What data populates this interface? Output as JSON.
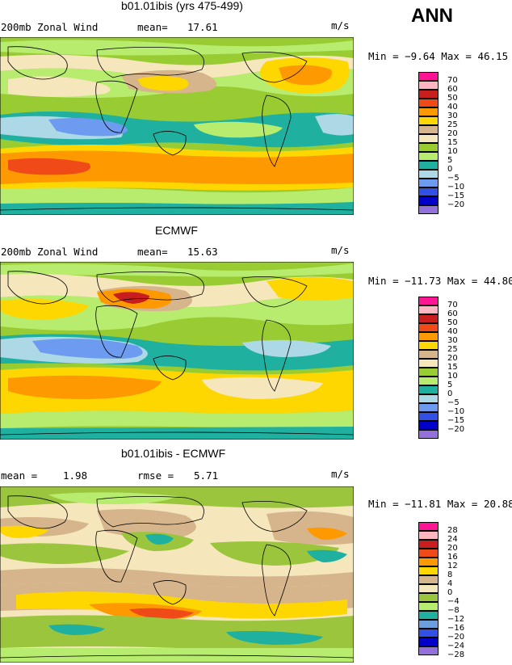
{
  "header": {
    "season": "ANN"
  },
  "panels": [
    {
      "title": "b01.01ibis (yrs 475-499)",
      "left_label": "200mb Zonal Wind",
      "stat_label": "mean=",
      "stat_value": "17.61",
      "stat2_label": "",
      "stat2_value": "",
      "units": "m/s",
      "minmax": "Min =   −9.64 Max =  46.15",
      "levels": [
        "70",
        "60",
        "50",
        "40",
        "30",
        "25",
        "20",
        "15",
        "10",
        "5",
        "0",
        "−5",
        "−10",
        "−15",
        "−20"
      ]
    },
    {
      "title": "ECMWF",
      "left_label": "200mb Zonal Wind",
      "stat_label": "mean=",
      "stat_value": "15.63",
      "stat2_label": "",
      "stat2_value": "",
      "units": "m/s",
      "minmax": "Min = −11.73 Max =  44.80",
      "levels": [
        "70",
        "60",
        "50",
        "40",
        "30",
        "25",
        "20",
        "15",
        "10",
        "5",
        "0",
        "−5",
        "−10",
        "−15",
        "−20"
      ]
    },
    {
      "title": "b01.01ibis - ECMWF",
      "left_label": "mean =",
      "stat_label": "",
      "stat_value": "1.98",
      "stat2_label": "rmse =",
      "stat2_value": "5.71",
      "units": "m/s",
      "minmax": "Min = −11.81 Max =  20.88",
      "levels": [
        "28",
        "24",
        "20",
        "16",
        "12",
        "8",
        "4",
        "0",
        "−4",
        "−8",
        "−12",
        "−16",
        "−20",
        "−24",
        "−28"
      ]
    }
  ],
  "colors": {
    "full_field": [
      "#ff1493",
      "#ffb6c1",
      "#c81e1e",
      "#f04a19",
      "#ff9900",
      "#ffd700",
      "#d6b48c",
      "#f5e6bc",
      "#99cc33",
      "#b8ec6e",
      "#1fb0a0",
      "#add8e6",
      "#6d9bf0",
      "#3250e6",
      "#0000c8",
      "#9370db"
    ],
    "difference": [
      "#ff1493",
      "#ffb6c1",
      "#c81e1e",
      "#f04a19",
      "#ff9900",
      "#ffd700",
      "#d6b48c",
      "#f5e6bc",
      "#9bc53d",
      "#b8ec6e",
      "#1fb0a0",
      "#6ca0dc",
      "#3250e6",
      "#0000c8",
      "#9370db"
    ]
  }
}
